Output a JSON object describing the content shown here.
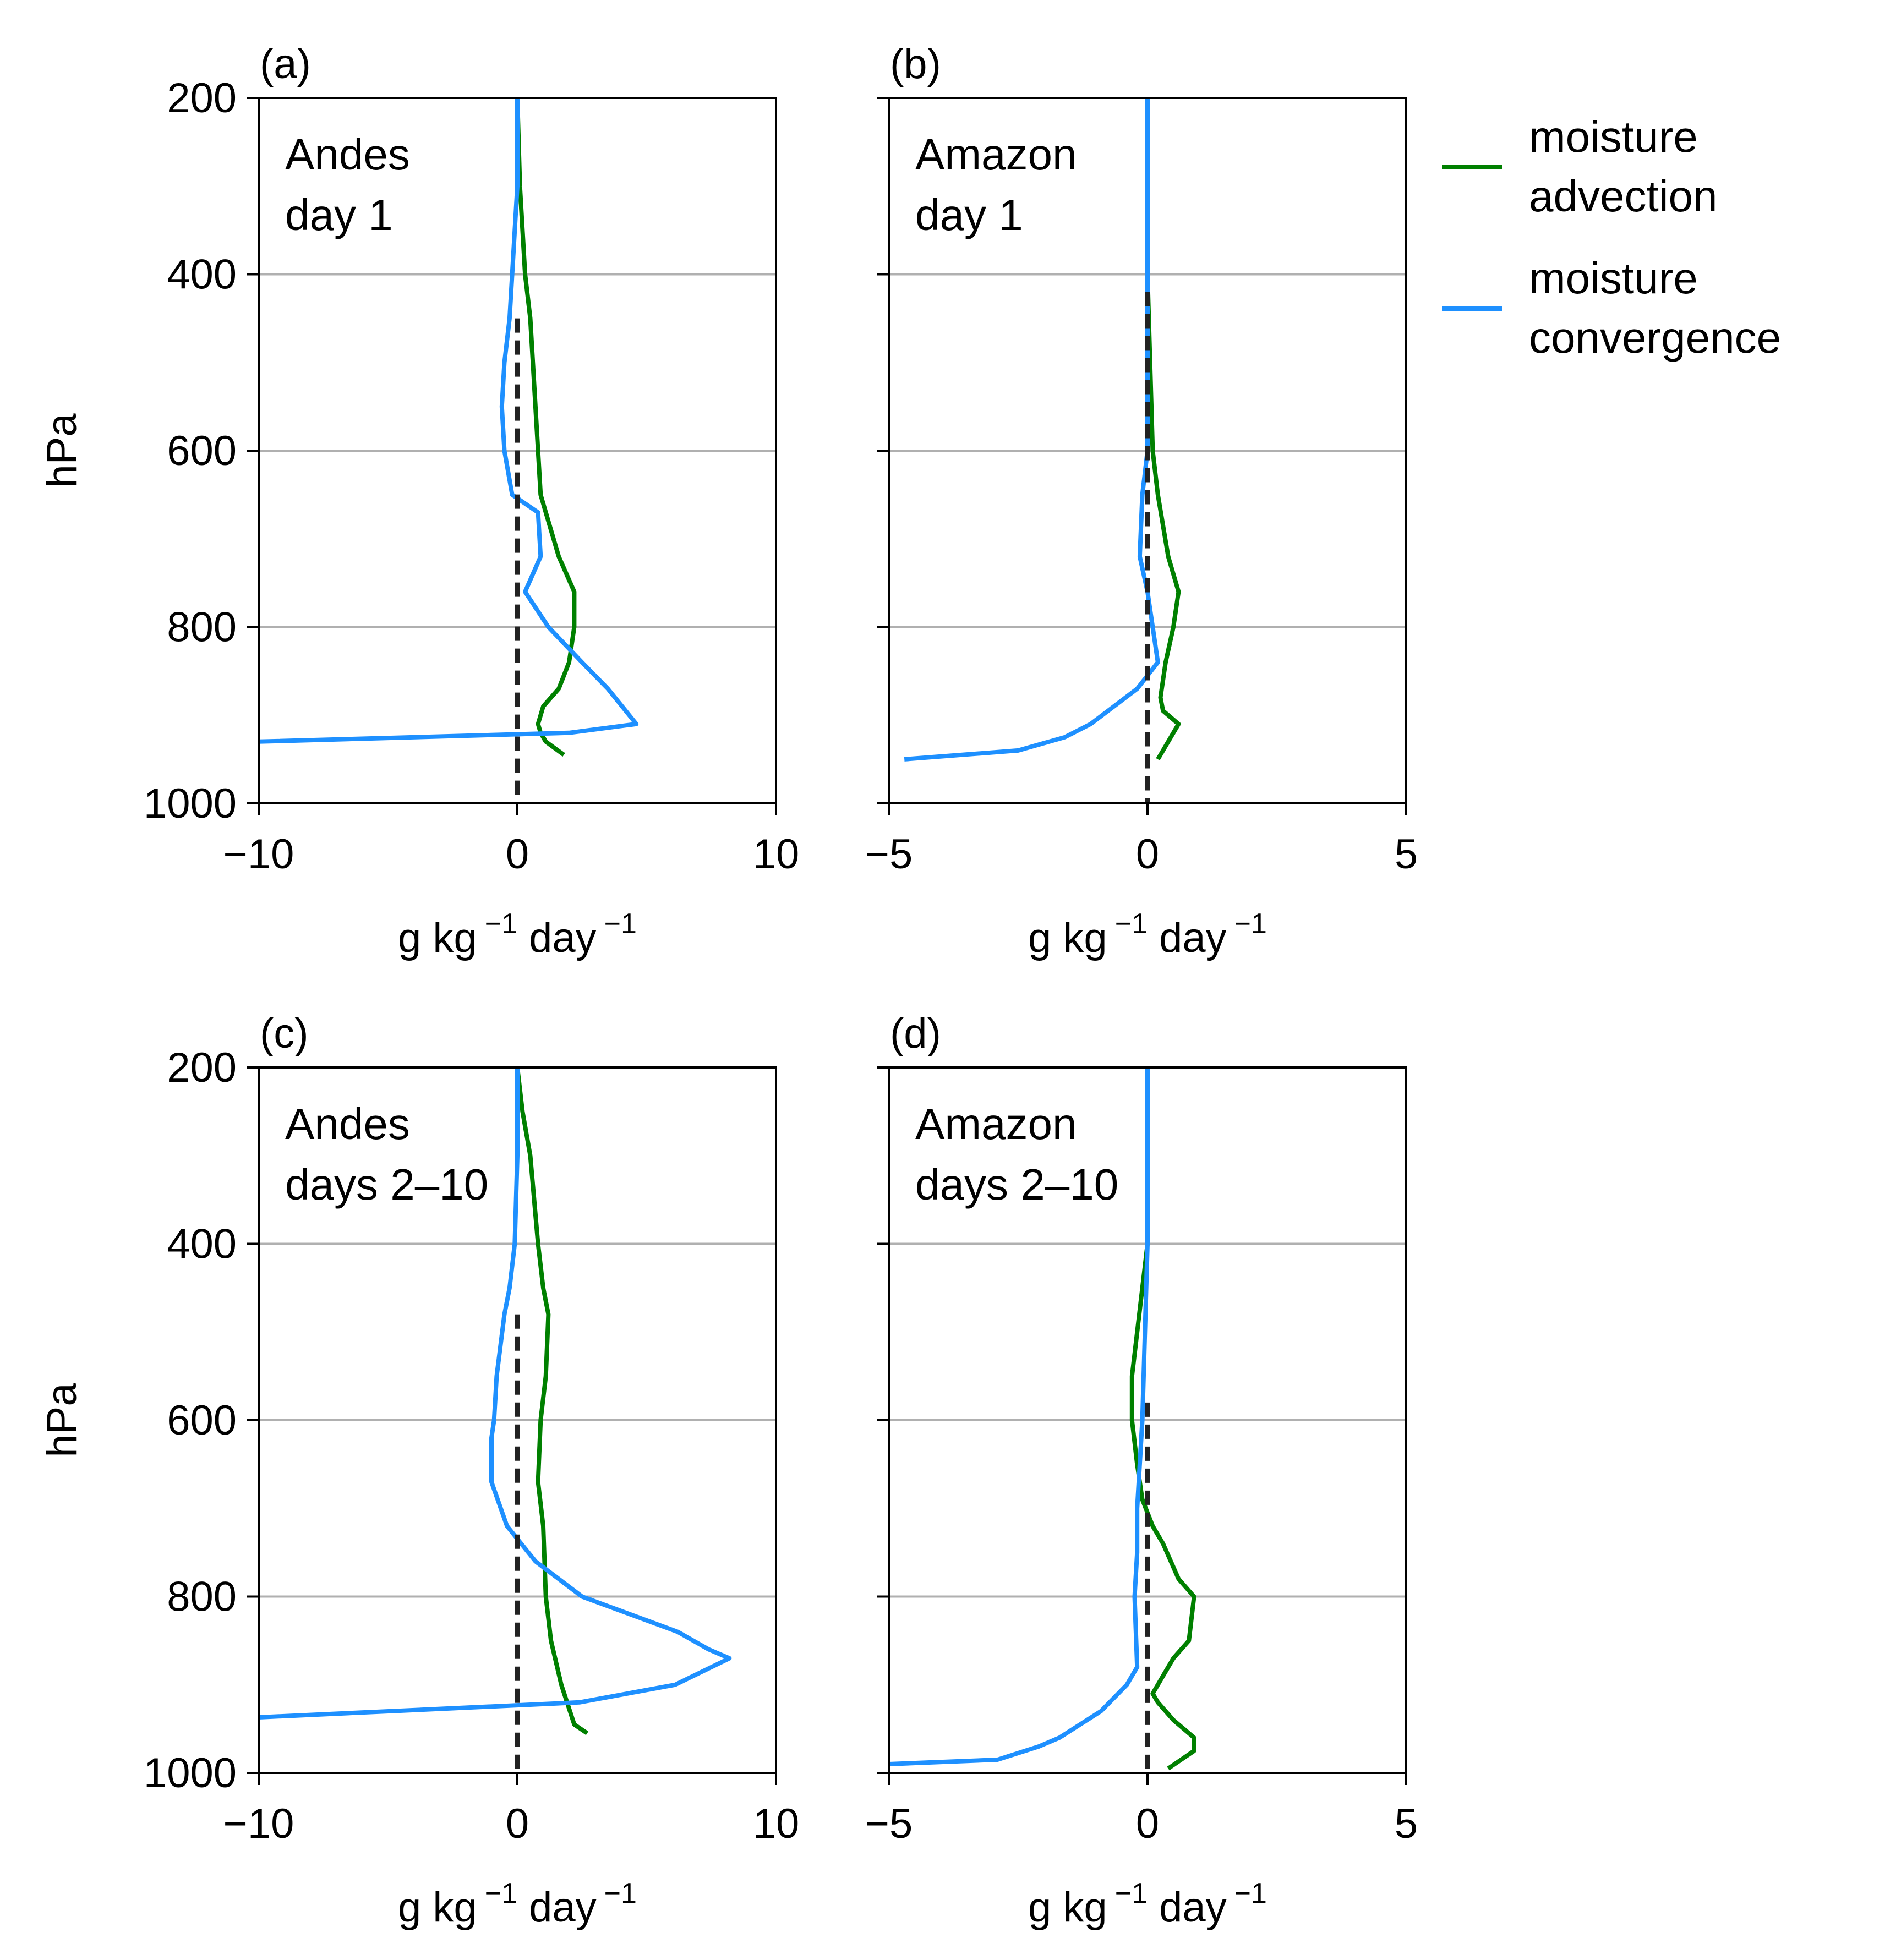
{
  "chart_data": [
    {
      "panel_label": "(a)",
      "annotation": [
        "Andes",
        "day 1"
      ],
      "type": "line",
      "xlim": [
        -10,
        10
      ],
      "ylim": [
        1000,
        200
      ],
      "xticks": [
        "−10",
        "0",
        "10"
      ],
      "xtick_values": [
        -10,
        0,
        10
      ],
      "yticks": [
        "200",
        "400",
        "600",
        "800",
        "1000"
      ],
      "ytick_values": [
        200,
        400,
        600,
        800,
        1000
      ],
      "xlabel": {
        "base1": "g kg",
        "exp1": "−1",
        "base2": " day",
        "exp2": "−1"
      },
      "ylabel": "hPa",
      "grid": "horizontal",
      "series": [
        {
          "key": "advection",
          "color": "#008000",
          "x": [
            0.0,
            0.1,
            0.2,
            0.3,
            0.5,
            0.6,
            0.7,
            0.8,
            0.9,
            1.1,
            1.6,
            2.2,
            2.2,
            2.0,
            1.6,
            1.0,
            0.8,
            0.9,
            1.1,
            1.8
          ],
          "y": [
            200,
            300,
            350,
            400,
            450,
            500,
            550,
            600,
            650,
            670,
            720,
            760,
            800,
            840,
            870,
            890,
            910,
            920,
            930,
            945
          ]
        },
        {
          "key": "convergence",
          "color": "#1e90ff",
          "x": [
            0.0,
            0.0,
            -0.1,
            -0.2,
            -0.3,
            -0.5,
            -0.6,
            -0.5,
            -0.2,
            0.8,
            0.9,
            0.3,
            1.2,
            2.5,
            3.5,
            4.6,
            2.0,
            -10.0
          ],
          "y": [
            200,
            300,
            350,
            400,
            450,
            500,
            550,
            600,
            650,
            670,
            720,
            760,
            800,
            840,
            870,
            910,
            920,
            930
          ]
        },
        {
          "key": "zero",
          "color": "#222222",
          "dashed": true,
          "x": [
            0,
            0
          ],
          "y": [
            450,
            1000
          ]
        }
      ]
    },
    {
      "panel_label": "(b)",
      "annotation": [
        "Amazon",
        "day 1"
      ],
      "type": "line",
      "xlim": [
        -5,
        5
      ],
      "ylim": [
        1000,
        200
      ],
      "xticks": [
        "−5",
        "0",
        "5"
      ],
      "xtick_values": [
        -5,
        0,
        5
      ],
      "yticks": [
        "200",
        "400",
        "600",
        "800",
        "1000"
      ],
      "ytick_values": [
        200,
        400,
        600,
        800,
        1000
      ],
      "xlabel": {
        "base1": "g kg",
        "exp1": "−1",
        "base2": " day",
        "exp2": "−1"
      },
      "ylabel": "",
      "grid": "horizontal",
      "series": [
        {
          "key": "advection",
          "color": "#008000",
          "x": [
            0.0,
            0.0,
            0.05,
            0.1,
            0.2,
            0.4,
            0.6,
            0.5,
            0.35,
            0.25,
            0.3,
            0.6,
            0.3,
            0.2
          ],
          "y": [
            200,
            400,
            500,
            600,
            650,
            720,
            760,
            800,
            840,
            880,
            895,
            910,
            940,
            950
          ]
        },
        {
          "key": "convergence",
          "color": "#1e90ff",
          "x": [
            0.0,
            0.0,
            0.0,
            0.0,
            -0.1,
            -0.15,
            0.0,
            0.2,
            -0.2,
            -1.1,
            -1.6,
            -2.5,
            -4.7
          ],
          "y": [
            200,
            400,
            500,
            600,
            650,
            720,
            760,
            840,
            870,
            910,
            925,
            940,
            950
          ]
        },
        {
          "key": "zero",
          "color": "#222222",
          "dashed": true,
          "x": [
            0,
            0
          ],
          "y": [
            420,
            1000
          ]
        }
      ]
    },
    {
      "panel_label": "(c)",
      "annotation": [
        "Andes",
        "days 2–10"
      ],
      "type": "line",
      "xlim": [
        -10,
        10
      ],
      "ylim": [
        1000,
        200
      ],
      "xticks": [
        "−10",
        "0",
        "10"
      ],
      "xtick_values": [
        -10,
        0,
        10
      ],
      "yticks": [
        "200",
        "400",
        "600",
        "800",
        "1000"
      ],
      "ytick_values": [
        200,
        400,
        600,
        800,
        1000
      ],
      "xlabel": {
        "base1": "g kg",
        "exp1": "−1",
        "base2": " day",
        "exp2": "−1"
      },
      "ylabel": "hPa",
      "grid": "horizontal",
      "series": [
        {
          "key": "advection",
          "color": "#008000",
          "x": [
            0.0,
            0.2,
            0.5,
            0.8,
            1.0,
            1.2,
            1.1,
            0.9,
            0.8,
            1.0,
            1.1,
            1.3,
            1.7,
            2.2,
            2.7
          ],
          "y": [
            200,
            250,
            300,
            400,
            450,
            480,
            550,
            600,
            670,
            720,
            800,
            850,
            900,
            945,
            955
          ]
        },
        {
          "key": "convergence",
          "color": "#1e90ff",
          "x": [
            0.0,
            0.0,
            -0.1,
            -0.3,
            -0.5,
            -0.8,
            -0.9,
            -1.0,
            -1.0,
            -0.4,
            0.7,
            2.5,
            6.2,
            7.4,
            8.2,
            6.1,
            2.4,
            -10.0
          ],
          "y": [
            200,
            300,
            400,
            450,
            480,
            550,
            600,
            620,
            670,
            720,
            760,
            800,
            840,
            860,
            870,
            900,
            920,
            937
          ]
        },
        {
          "key": "zero",
          "color": "#222222",
          "dashed": true,
          "x": [
            0,
            0
          ],
          "y": [
            480,
            1000
          ]
        }
      ]
    },
    {
      "panel_label": "(d)",
      "annotation": [
        "Amazon",
        "days 2–10"
      ],
      "type": "line",
      "xlim": [
        -5,
        5
      ],
      "ylim": [
        1000,
        200
      ],
      "xticks": [
        "−5",
        "0",
        "5"
      ],
      "xtick_values": [
        -5,
        0,
        5
      ],
      "yticks": [
        "200",
        "400",
        "600",
        "800",
        "1000"
      ],
      "ytick_values": [
        200,
        400,
        600,
        800,
        1000
      ],
      "xlabel": {
        "base1": "g kg",
        "exp1": "−1",
        "base2": " day",
        "exp2": "−1"
      },
      "ylabel": "",
      "grid": "horizontal",
      "series": [
        {
          "key": "advection",
          "color": "#008000",
          "x": [
            0.0,
            0.0,
            -0.1,
            -0.2,
            -0.3,
            -0.3,
            -0.2,
            -0.1,
            0.1,
            0.3,
            0.6,
            0.9,
            0.8,
            0.5,
            0.3,
            0.1,
            0.2,
            0.5,
            0.9,
            0.9,
            0.4
          ],
          "y": [
            200,
            400,
            450,
            500,
            550,
            600,
            650,
            690,
            720,
            740,
            780,
            800,
            850,
            870,
            890,
            910,
            920,
            940,
            960,
            975,
            995
          ]
        },
        {
          "key": "convergence",
          "color": "#1e90ff",
          "x": [
            0.0,
            0.0,
            -0.05,
            -0.1,
            -0.15,
            -0.2,
            -0.2,
            -0.25,
            -0.2,
            -0.4,
            -0.9,
            -1.7,
            -2.1,
            -2.9,
            -5.0
          ],
          "y": [
            200,
            400,
            500,
            600,
            650,
            700,
            750,
            800,
            880,
            900,
            930,
            960,
            970,
            985,
            990
          ]
        },
        {
          "key": "zero",
          "color": "#222222",
          "dashed": true,
          "x": [
            0,
            0
          ],
          "y": [
            580,
            1000
          ]
        }
      ]
    }
  ],
  "legend": {
    "placement": "right of top-right panel",
    "items": [
      {
        "key": "advection",
        "color": "#008000",
        "lines": [
          "moisture",
          "advection"
        ]
      },
      {
        "key": "convergence",
        "color": "#1e90ff",
        "lines": [
          "moisture",
          "convergence"
        ]
      }
    ]
  }
}
